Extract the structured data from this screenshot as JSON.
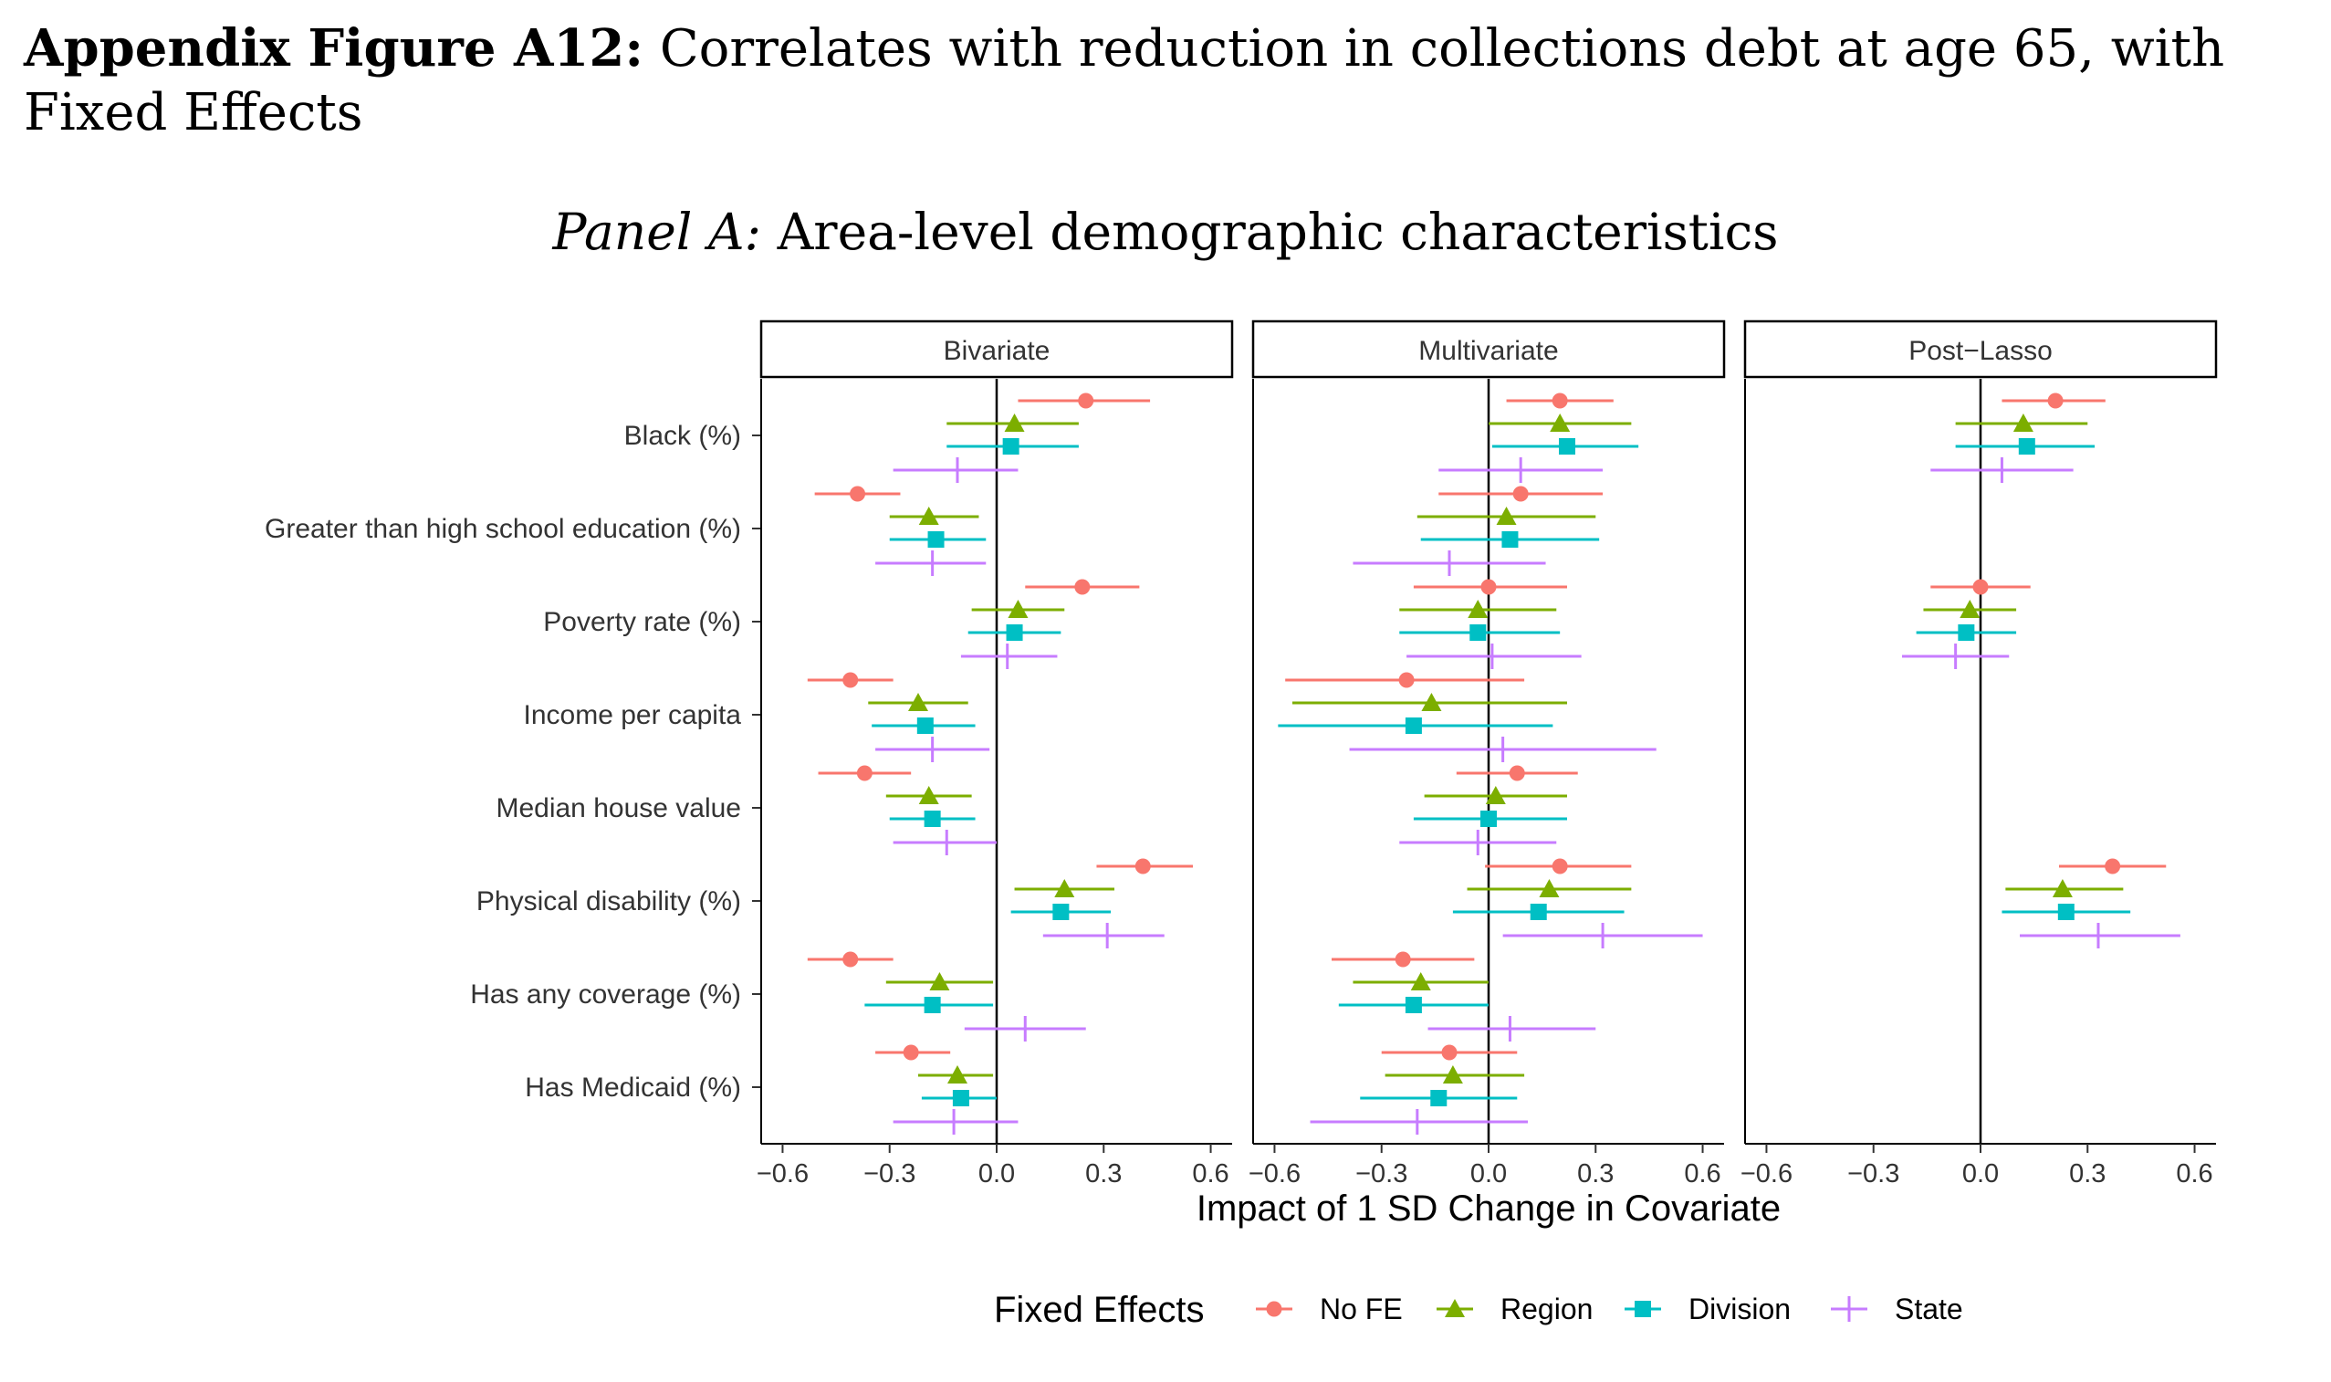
{
  "figure_title": {
    "prefix": "Appendix Figure A12:",
    "text": "Correlates with reduction in collections debt at age 65, with Fixed Effects"
  },
  "panel_title": {
    "prefix": "Panel A:",
    "text": "Area-level demographic characteristics"
  },
  "chart_data": {
    "type": "scatter",
    "subtype": "coefficient plot with 95% confidence intervals, faceted",
    "xlabel": "Impact of 1 SD Change in Covariate",
    "xlim": [
      -0.66,
      0.66
    ],
    "xticks": [
      -0.6,
      -0.3,
      0.0,
      0.3,
      0.6
    ],
    "xtick_labels": [
      "−0.6",
      "−0.3",
      "0.0",
      "0.3",
      "0.6"
    ],
    "reference_line": 0,
    "grid": false,
    "legend": {
      "title": "Fixed Effects",
      "position": "bottom"
    },
    "categories": [
      "Black (%)",
      "Greater than high school education (%)",
      "Poverty rate (%)",
      "Income per capita",
      "Median house value",
      "Physical disability (%)",
      "Has any coverage (%)",
      "Has Medicaid (%)"
    ],
    "series_meta": [
      {
        "name": "No FE",
        "color": "#F8766D",
        "marker": "circle"
      },
      {
        "name": "Region",
        "color": "#7CAE00",
        "marker": "triangle"
      },
      {
        "name": "Division",
        "color": "#00BFC4",
        "marker": "square"
      },
      {
        "name": "State",
        "color": "#C77CFF",
        "marker": "plus"
      }
    ],
    "facets": [
      {
        "name": "Bivariate",
        "series": [
          {
            "name": "No FE",
            "estimates": [
              0.25,
              -0.39,
              0.24,
              -0.41,
              -0.37,
              0.41,
              -0.41,
              -0.24
            ],
            "ci_low": [
              0.06,
              -0.51,
              0.08,
              -0.53,
              -0.5,
              0.28,
              -0.53,
              -0.34
            ],
            "ci_high": [
              0.43,
              -0.27,
              0.4,
              -0.29,
              -0.24,
              0.55,
              -0.29,
              -0.13
            ]
          },
          {
            "name": "Region",
            "estimates": [
              0.05,
              -0.19,
              0.06,
              -0.22,
              -0.19,
              0.19,
              -0.16,
              -0.11
            ],
            "ci_low": [
              -0.14,
              -0.3,
              -0.07,
              -0.36,
              -0.31,
              0.05,
              -0.31,
              -0.22
            ],
            "ci_high": [
              0.23,
              -0.05,
              0.19,
              -0.08,
              -0.07,
              0.33,
              -0.01,
              -0.01
            ]
          },
          {
            "name": "Division",
            "estimates": [
              0.04,
              -0.17,
              0.05,
              -0.2,
              -0.18,
              0.18,
              -0.18,
              -0.1
            ],
            "ci_low": [
              -0.14,
              -0.3,
              -0.08,
              -0.35,
              -0.3,
              0.04,
              -0.37,
              -0.21
            ],
            "ci_high": [
              0.23,
              -0.03,
              0.18,
              -0.06,
              -0.06,
              0.32,
              -0.01,
              0.0
            ]
          },
          {
            "name": "State",
            "estimates": [
              -0.11,
              -0.18,
              0.03,
              -0.18,
              -0.14,
              0.31,
              0.08,
              -0.12
            ],
            "ci_low": [
              -0.29,
              -0.34,
              -0.1,
              -0.34,
              -0.29,
              0.13,
              -0.09,
              -0.29
            ],
            "ci_high": [
              0.06,
              -0.03,
              0.17,
              -0.02,
              0.0,
              0.47,
              0.25,
              0.06
            ]
          }
        ]
      },
      {
        "name": "Multivariate",
        "series": [
          {
            "name": "No FE",
            "estimates": [
              0.2,
              0.09,
              0.0,
              -0.23,
              0.08,
              0.2,
              -0.24,
              -0.11
            ],
            "ci_low": [
              0.05,
              -0.14,
              -0.21,
              -0.57,
              -0.09,
              -0.01,
              -0.44,
              -0.3
            ],
            "ci_high": [
              0.35,
              0.32,
              0.22,
              0.1,
              0.25,
              0.4,
              -0.04,
              0.08
            ]
          },
          {
            "name": "Region",
            "estimates": [
              0.2,
              0.05,
              -0.03,
              -0.16,
              0.02,
              0.17,
              -0.19,
              -0.1
            ],
            "ci_low": [
              0.0,
              -0.2,
              -0.25,
              -0.55,
              -0.18,
              -0.06,
              -0.38,
              -0.29
            ],
            "ci_high": [
              0.4,
              0.3,
              0.19,
              0.22,
              0.22,
              0.4,
              0.0,
              0.1
            ]
          },
          {
            "name": "Division",
            "estimates": [
              0.22,
              0.06,
              -0.03,
              -0.21,
              0.0,
              0.14,
              -0.21,
              -0.14
            ],
            "ci_low": [
              0.01,
              -0.19,
              -0.25,
              -0.59,
              -0.21,
              -0.1,
              -0.42,
              -0.36
            ],
            "ci_high": [
              0.42,
              0.31,
              0.2,
              0.18,
              0.22,
              0.38,
              0.0,
              0.08
            ]
          },
          {
            "name": "State",
            "estimates": [
              0.09,
              -0.11,
              0.01,
              0.04,
              -0.03,
              0.32,
              0.06,
              -0.2
            ],
            "ci_low": [
              -0.14,
              -0.38,
              -0.23,
              -0.39,
              -0.25,
              0.04,
              -0.17,
              -0.5
            ],
            "ci_high": [
              0.32,
              0.16,
              0.26,
              0.47,
              0.19,
              0.6,
              0.3,
              0.11
            ]
          }
        ]
      },
      {
        "name": "Post−Lasso",
        "series": [
          {
            "name": "No FE",
            "estimates": [
              0.21,
              null,
              0.0,
              null,
              null,
              0.37,
              null,
              null
            ],
            "ci_low": [
              0.06,
              null,
              -0.14,
              null,
              null,
              0.22,
              null,
              null
            ],
            "ci_high": [
              0.35,
              null,
              0.14,
              null,
              null,
              0.52,
              null,
              null
            ]
          },
          {
            "name": "Region",
            "estimates": [
              0.12,
              null,
              -0.03,
              null,
              null,
              0.23,
              null,
              null
            ],
            "ci_low": [
              -0.07,
              null,
              -0.16,
              null,
              null,
              0.07,
              null,
              null
            ],
            "ci_high": [
              0.3,
              null,
              0.1,
              null,
              null,
              0.4,
              null,
              null
            ]
          },
          {
            "name": "Division",
            "estimates": [
              0.13,
              null,
              -0.04,
              null,
              null,
              0.24,
              null,
              null
            ],
            "ci_low": [
              -0.07,
              null,
              -0.18,
              null,
              null,
              0.06,
              null,
              null
            ],
            "ci_high": [
              0.32,
              null,
              0.1,
              null,
              null,
              0.42,
              null,
              null
            ]
          },
          {
            "name": "State",
            "estimates": [
              0.06,
              null,
              -0.07,
              null,
              null,
              0.33,
              null,
              null
            ],
            "ci_low": [
              -0.14,
              null,
              -0.22,
              null,
              null,
              0.11,
              null,
              null
            ],
            "ci_high": [
              0.26,
              null,
              0.08,
              null,
              null,
              0.56,
              null,
              null
            ]
          }
        ]
      }
    ]
  }
}
